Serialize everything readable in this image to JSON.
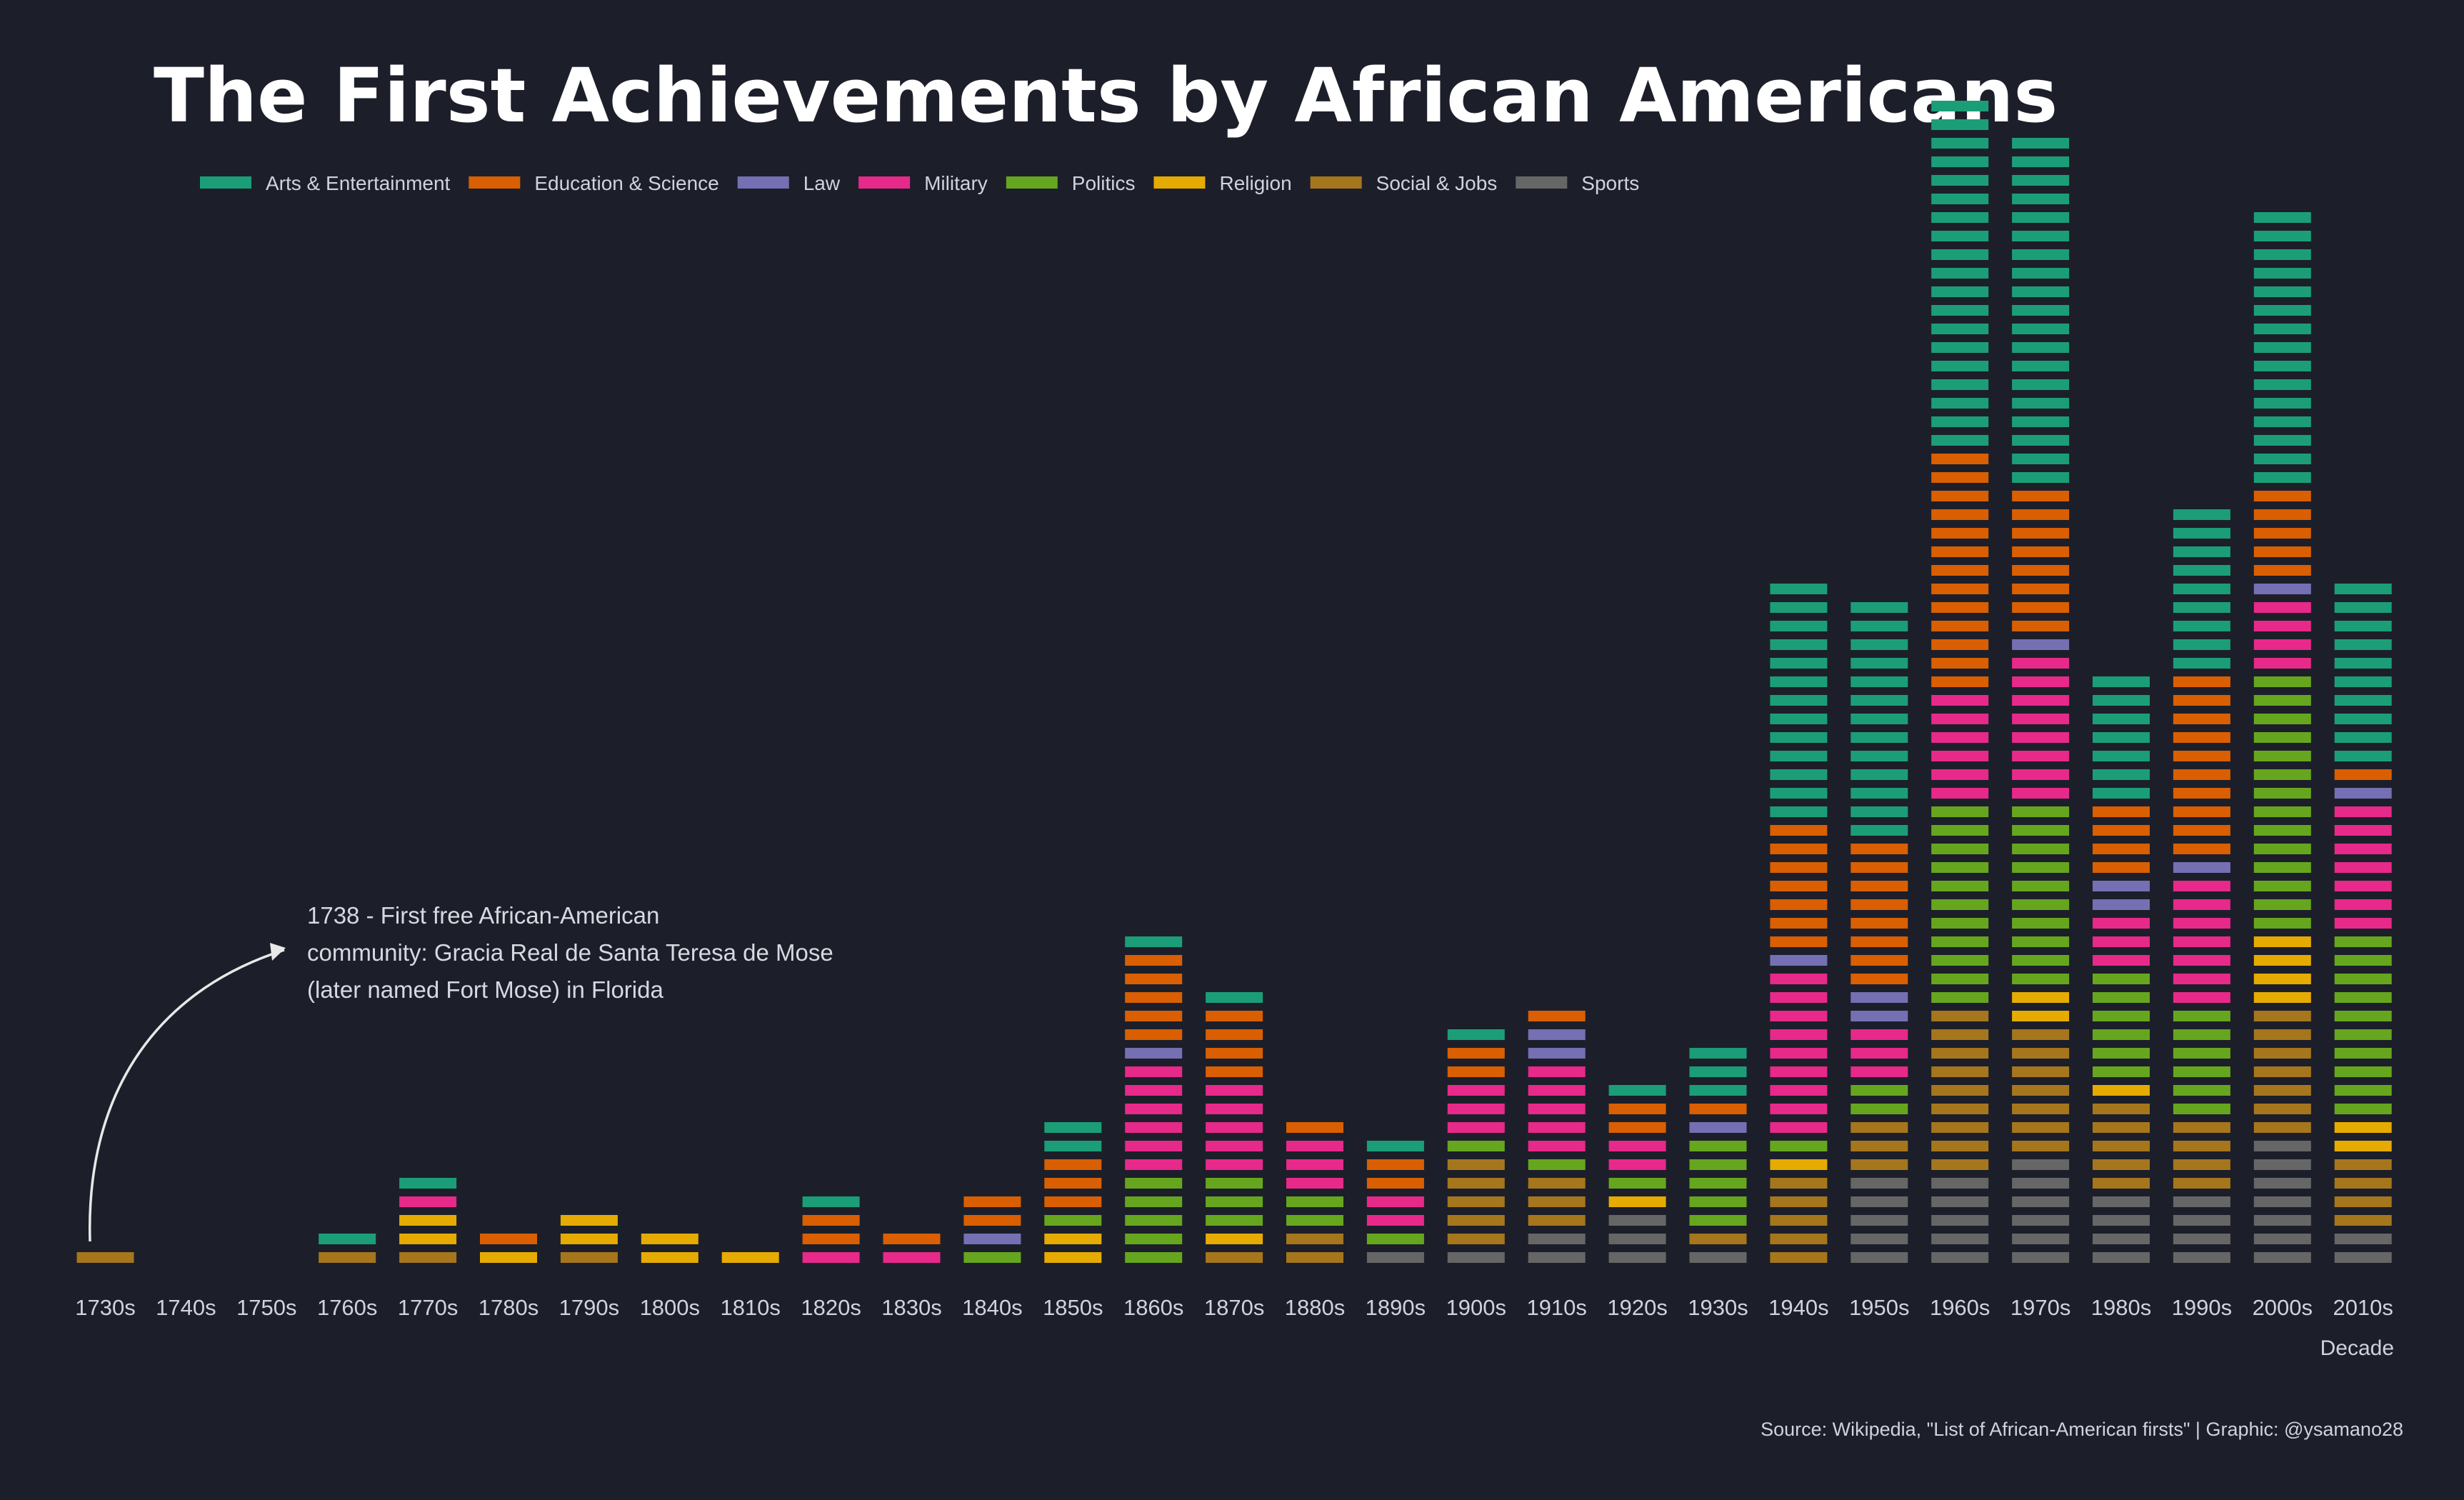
{
  "chart_data": {
    "type": "bar",
    "subtype": "stacked-unit",
    "title": "The First Achievements by African Americans",
    "xlabel": "Decade",
    "ylabel": "",
    "grid": false,
    "legend_position": "top",
    "caption": "Source: Wikipedia, \"List of African-American firsts\" | Graphic: @ysamano28",
    "annotation": {
      "lines": [
        "1738 - First free African-American",
        "community: Gracia Real de Santa Teresa de Mose",
        "(later named Fort Mose) in Florida"
      ],
      "target_category": "1730s"
    },
    "categories": [
      "1730s",
      "1740s",
      "1750s",
      "1760s",
      "1770s",
      "1780s",
      "1790s",
      "1800s",
      "1810s",
      "1820s",
      "1830s",
      "1840s",
      "1850s",
      "1860s",
      "1870s",
      "1880s",
      "1890s",
      "1900s",
      "1910s",
      "1920s",
      "1930s",
      "1940s",
      "1950s",
      "1960s",
      "1970s",
      "1980s",
      "1990s",
      "2000s",
      "2010s"
    ],
    "series": [
      {
        "name": "Sports",
        "color": "#666666",
        "values": [
          0,
          0,
          0,
          0,
          0,
          0,
          0,
          0,
          0,
          0,
          0,
          0,
          0,
          0,
          0,
          0,
          1,
          1,
          2,
          3,
          1,
          0,
          5,
          5,
          6,
          4,
          4,
          7,
          2
        ]
      },
      {
        "name": "Social & Jobs",
        "color": "#a6761d",
        "values": [
          1,
          0,
          0,
          1,
          1,
          0,
          1,
          0,
          0,
          0,
          0,
          0,
          0,
          0,
          1,
          2,
          0,
          5,
          3,
          0,
          1,
          5,
          3,
          9,
          7,
          5,
          4,
          7,
          4
        ]
      },
      {
        "name": "Religion",
        "color": "#e6ab02",
        "values": [
          0,
          0,
          0,
          0,
          2,
          1,
          2,
          2,
          1,
          0,
          0,
          0,
          2,
          0,
          1,
          0,
          0,
          0,
          0,
          1,
          0,
          1,
          0,
          0,
          2,
          1,
          0,
          4,
          2
        ]
      },
      {
        "name": "Politics",
        "color": "#66a61e",
        "values": [
          0,
          0,
          0,
          0,
          0,
          0,
          0,
          0,
          0,
          0,
          0,
          1,
          1,
          5,
          3,
          2,
          1,
          1,
          1,
          1,
          5,
          1,
          2,
          11,
          10,
          6,
          6,
          14,
          10
        ]
      },
      {
        "name": "Military",
        "color": "#e7298a",
        "values": [
          0,
          0,
          0,
          0,
          1,
          0,
          0,
          0,
          0,
          1,
          1,
          0,
          0,
          6,
          5,
          3,
          2,
          3,
          5,
          2,
          0,
          9,
          3,
          6,
          8,
          3,
          7,
          4,
          7
        ]
      },
      {
        "name": "Law",
        "color": "#7570b3",
        "values": [
          0,
          0,
          0,
          0,
          0,
          0,
          0,
          0,
          0,
          0,
          0,
          1,
          0,
          1,
          0,
          0,
          0,
          0,
          2,
          0,
          1,
          1,
          2,
          0,
          1,
          2,
          1,
          1,
          1
        ]
      },
      {
        "name": "Education & Science",
        "color": "#d95f02",
        "values": [
          0,
          0,
          0,
          0,
          0,
          1,
          0,
          0,
          0,
          2,
          1,
          2,
          3,
          5,
          4,
          1,
          2,
          2,
          1,
          2,
          1,
          7,
          8,
          13,
          8,
          4,
          10,
          5,
          1
        ]
      },
      {
        "name": "Arts & Entertainment",
        "color": "#1b9e77",
        "values": [
          0,
          0,
          0,
          1,
          1,
          0,
          0,
          0,
          0,
          1,
          0,
          0,
          2,
          1,
          1,
          0,
          1,
          1,
          0,
          1,
          3,
          13,
          13,
          19,
          19,
          7,
          9,
          15,
          10
        ]
      }
    ],
    "legend_order": [
      "Arts & Entertainment",
      "Education & Science",
      "Law",
      "Military",
      "Politics",
      "Religion",
      "Social & Jobs",
      "Sports"
    ]
  }
}
